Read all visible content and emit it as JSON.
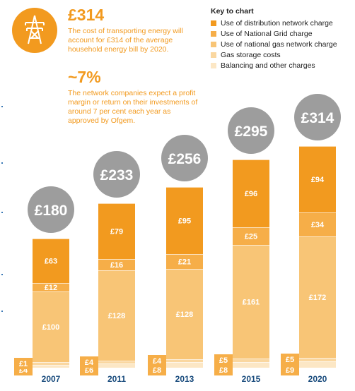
{
  "colors": {
    "distribution": "#f29a1f",
    "grid": "#f6ae48",
    "gas_network": "#f8c576",
    "gas_storage": "#fad7a0",
    "balancing": "#fce7c5",
    "bubble": "#9d9d9d",
    "text_orange": "#f29a1f",
    "year_text": "#174a7c"
  },
  "stats": [
    {
      "value": "£314",
      "text": "The cost of transporting energy will account for £314 of the average household energy bill by 2020."
    },
    {
      "value": "~7%",
      "text": "The network companies expect a profit margin or return on their investments of around 7 per cent each year as approved by Ofgem."
    }
  ],
  "icon": "pylon-icon",
  "legend": {
    "title": "Key to chart",
    "items": [
      "Use of distribution network charge",
      "Use of National Grid charge",
      "Use of national gas network charge",
      "Gas storage costs",
      "Balancing and other charges"
    ]
  },
  "chart_data": {
    "type": "bar",
    "stacked": true,
    "categories": [
      "2007",
      "2011",
      "2013",
      "2015",
      "2020"
    ],
    "totals": [
      "£180",
      "£233",
      "£256",
      "£295",
      "£314"
    ],
    "series": [
      {
        "name": "Balancing and other charges",
        "values": [
          4,
          6,
          8,
          8,
          9
        ],
        "labels": [
          "£4",
          "£6",
          "£8",
          "£8",
          "£9"
        ]
      },
      {
        "name": "Gas storage costs",
        "values": [
          1,
          4,
          4,
          5,
          5
        ],
        "labels": [
          "£1",
          "£4",
          "£4",
          "£5",
          "£5"
        ]
      },
      {
        "name": "Use of national gas network charge",
        "values": [
          100,
          128,
          128,
          161,
          172
        ],
        "labels": [
          "£100",
          "£128",
          "£128",
          "£161",
          "£172"
        ]
      },
      {
        "name": "Use of National Grid charge",
        "values": [
          12,
          16,
          21,
          25,
          34
        ],
        "labels": [
          "£12",
          "£16",
          "£21",
          "£25",
          "£34"
        ]
      },
      {
        "name": "Use of distribution network charge",
        "values": [
          63,
          79,
          95,
          96,
          94
        ],
        "labels": [
          "£63",
          "£79",
          "£95",
          "£96",
          "£94"
        ]
      }
    ]
  }
}
